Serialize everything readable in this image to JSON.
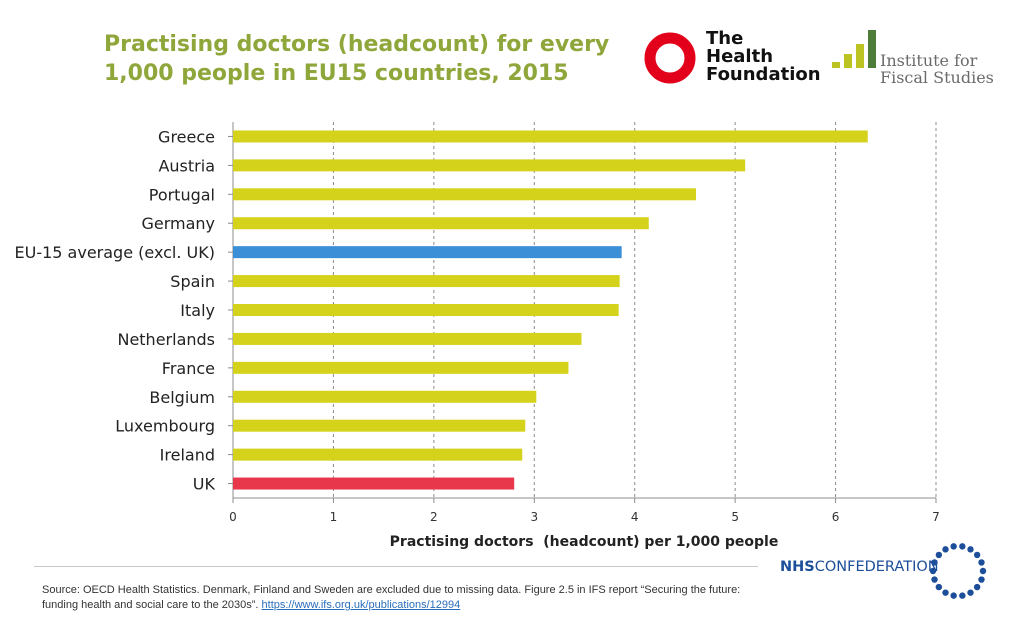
{
  "header": {
    "title_line1": "Practising doctors (headcount) for every",
    "title_line2": "1,000 people in EU15 countries, 2015"
  },
  "logos": {
    "health_foundation": {
      "line1": "The",
      "line2": "Health",
      "line3": "Foundation",
      "color": "#e2001a"
    },
    "ifs": {
      "line1": "Institute for",
      "line2": "Fiscal Studies",
      "color": "#bcc424"
    },
    "nhs_confederation": {
      "bold": "NHS",
      "rest": "CONFEDERATION",
      "color": "#1c4e9a"
    }
  },
  "colors": {
    "default_bar": "#d4d21a",
    "average_bar": "#3a8fd6",
    "uk_bar": "#e8374a",
    "title": "#8fa63a"
  },
  "chart_data": {
    "type": "bar",
    "orientation": "horizontal",
    "title": "Practising doctors (headcount) for every 1,000 people in EU15 countries, 2015",
    "xlabel": "Practising doctors  (headcount) per 1,000 people",
    "ylabel": "",
    "xlim": [
      0,
      7
    ],
    "xticks": [
      0,
      1,
      2,
      3,
      4,
      5,
      6,
      7
    ],
    "grid": "vertical dashed",
    "categories": [
      "Greece",
      "Austria",
      "Portugal",
      "Germany",
      "EU-15 average (excl. UK)",
      "Spain",
      "Italy",
      "Netherlands",
      "France",
      "Belgium",
      "Luxembourg",
      "Ireland",
      "UK"
    ],
    "values": [
      6.32,
      5.1,
      4.61,
      4.14,
      3.87,
      3.85,
      3.84,
      3.47,
      3.34,
      3.02,
      2.91,
      2.88,
      2.8
    ],
    "highlight": {
      "EU-15 average (excl. UK)": "average",
      "UK": "uk"
    }
  },
  "footer": {
    "source_text": "Source: OECD Health Statistics. Denmark, Finland and Sweden are excluded due to missing data. Figure 2.5 in IFS report “Securing the future: funding health and social care to the 2030s”. ",
    "source_link": "https://www.ifs.org.uk/publications/12994"
  }
}
